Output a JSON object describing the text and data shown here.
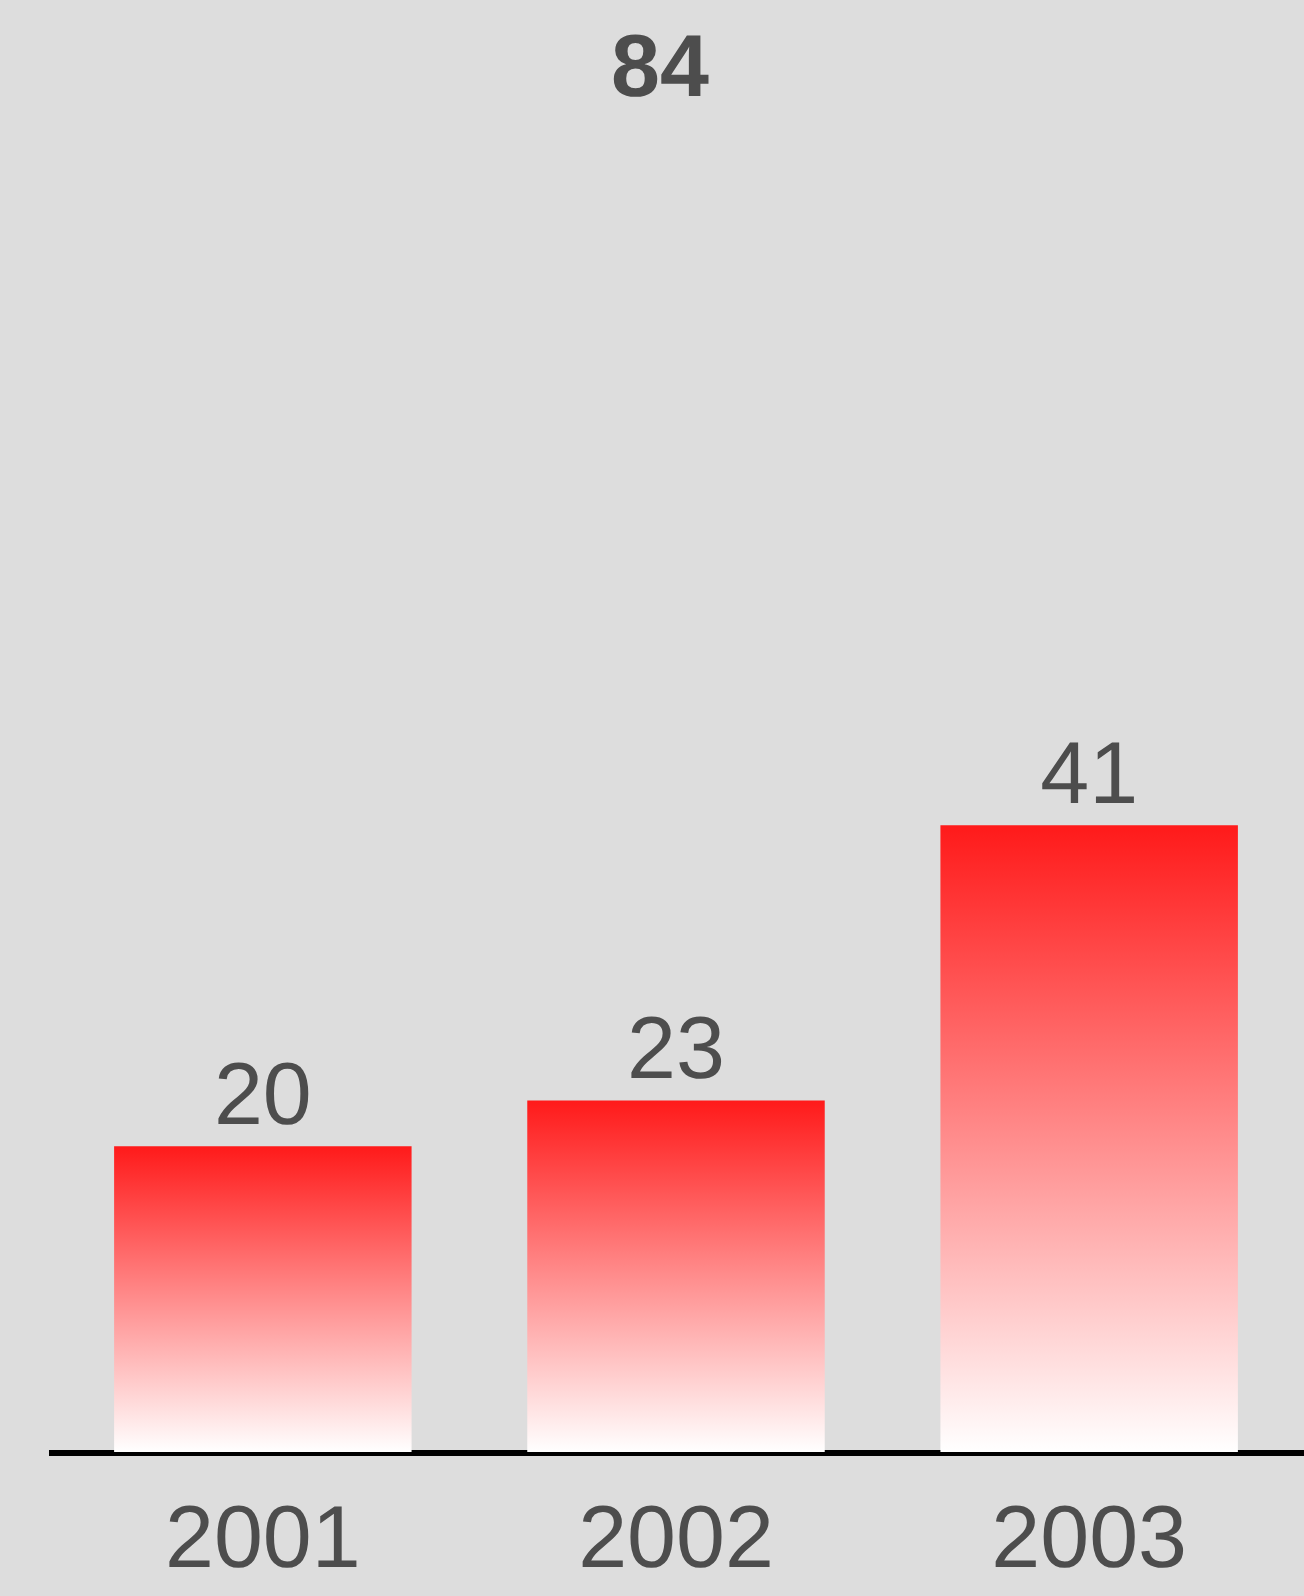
{
  "chart_data": {
    "type": "bar",
    "categories": [
      "2001",
      "2002",
      "2003"
    ],
    "values": [
      20,
      23,
      41
    ],
    "color": "#ff1a1a",
    "ylim": [
      0,
      95
    ],
    "data_labels": true,
    "tick_labels": "x",
    "annotations": [
      "84"
    ]
  }
}
